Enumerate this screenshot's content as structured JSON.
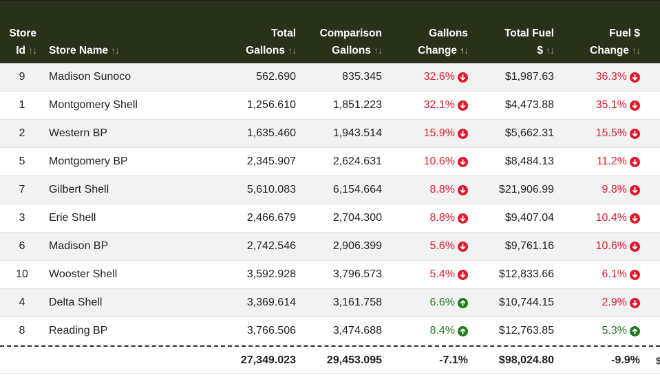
{
  "headers": {
    "store_id": [
      "Store",
      "Id"
    ],
    "store_name": "Store Name",
    "total_gallons": [
      "Total",
      "Gallons"
    ],
    "comparison_gallons": [
      "Comparison",
      "Gallons"
    ],
    "gallons_change": [
      "Gallons",
      "Change"
    ],
    "total_fuel": [
      "Total Fuel",
      "$"
    ],
    "fuel_change": [
      "Fuel $",
      "Change"
    ]
  },
  "sort_glyphs": {
    "up": "↑",
    "down": "↓"
  },
  "rows": [
    {
      "id": "9",
      "name": "Madison Sunoco",
      "total_gallons": "562.690",
      "comparison_gallons": "835.345",
      "gallons_change": "32.6%",
      "gallons_dir": "down",
      "total_fuel": "$1,987.63",
      "fuel_change": "36.3%",
      "fuel_dir": "down"
    },
    {
      "id": "1",
      "name": "Montgomery Shell",
      "total_gallons": "1,256.610",
      "comparison_gallons": "1,851.223",
      "gallons_change": "32.1%",
      "gallons_dir": "down",
      "total_fuel": "$4,473.88",
      "fuel_change": "35.1%",
      "fuel_dir": "down"
    },
    {
      "id": "2",
      "name": "Western BP",
      "total_gallons": "1,635.460",
      "comparison_gallons": "1,943.514",
      "gallons_change": "15.9%",
      "gallons_dir": "down",
      "total_fuel": "$5,662.31",
      "fuel_change": "15.5%",
      "fuel_dir": "down"
    },
    {
      "id": "5",
      "name": "Montgomery BP",
      "total_gallons": "2,345.907",
      "comparison_gallons": "2,624.631",
      "gallons_change": "10.6%",
      "gallons_dir": "down",
      "total_fuel": "$8,484.13",
      "fuel_change": "11.2%",
      "fuel_dir": "down"
    },
    {
      "id": "7",
      "name": "Gilbert Shell",
      "total_gallons": "5,610.083",
      "comparison_gallons": "6,154.664",
      "gallons_change": "8.8%",
      "gallons_dir": "down",
      "total_fuel": "$21,906.99",
      "fuel_change": "9.8%",
      "fuel_dir": "down"
    },
    {
      "id": "3",
      "name": "Erie Shell",
      "total_gallons": "2,466.679",
      "comparison_gallons": "2,704.300",
      "gallons_change": "8.8%",
      "gallons_dir": "down",
      "total_fuel": "$9,407.04",
      "fuel_change": "10.4%",
      "fuel_dir": "down"
    },
    {
      "id": "6",
      "name": "Madison BP",
      "total_gallons": "2,742.546",
      "comparison_gallons": "2,906.399",
      "gallons_change": "5.6%",
      "gallons_dir": "down",
      "total_fuel": "$9,761.16",
      "fuel_change": "10.6%",
      "fuel_dir": "down"
    },
    {
      "id": "10",
      "name": "Wooster Shell",
      "total_gallons": "3,592.928",
      "comparison_gallons": "3,796.573",
      "gallons_change": "5.4%",
      "gallons_dir": "down",
      "total_fuel": "$12,833.66",
      "fuel_change": "6.1%",
      "fuel_dir": "down"
    },
    {
      "id": "4",
      "name": "Delta Shell",
      "total_gallons": "3,369.614",
      "comparison_gallons": "3,161.758",
      "gallons_change": "6.6%",
      "gallons_dir": "up",
      "total_fuel": "$10,744.15",
      "fuel_change": "2.9%",
      "fuel_dir": "down"
    },
    {
      "id": "8",
      "name": "Reading BP",
      "total_gallons": "3,766.506",
      "comparison_gallons": "3,474.688",
      "gallons_change": "8.4%",
      "gallons_dir": "up",
      "total_fuel": "$12,763.85",
      "fuel_change": "5.3%",
      "fuel_dir": "up"
    }
  ],
  "totals": {
    "total_gallons": "27,349.023",
    "comparison_gallons": "29,453.095",
    "gallons_change": "-7.1%",
    "total_fuel": "$98,024.80",
    "fuel_change": "-9.9%",
    "cut_off": "$"
  },
  "colors": {
    "header_bg": "#283219",
    "negative": "#dc1e32",
    "positive": "#1f7a1f"
  }
}
